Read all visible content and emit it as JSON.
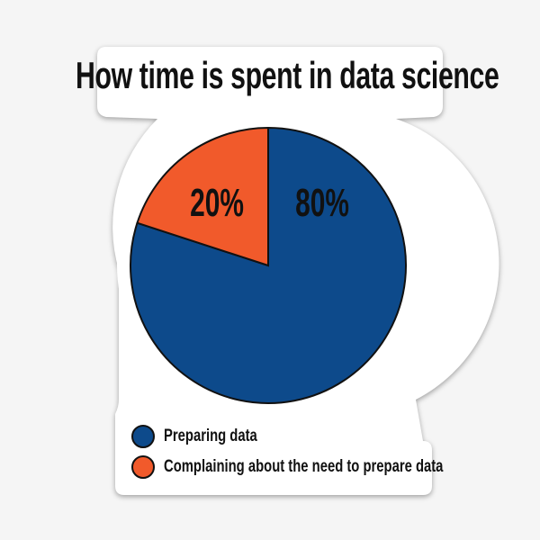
{
  "chart_data": {
    "type": "pie",
    "title": "How time is spent in data science",
    "slices": [
      {
        "name": "Preparing data",
        "value": 80,
        "label": "80%",
        "color": "#0d4a8b"
      },
      {
        "name": "Complaining about the need to prepare data",
        "value": 20,
        "label": "20%",
        "color": "#f15a2b"
      }
    ],
    "legend_position": "bottom-left"
  }
}
